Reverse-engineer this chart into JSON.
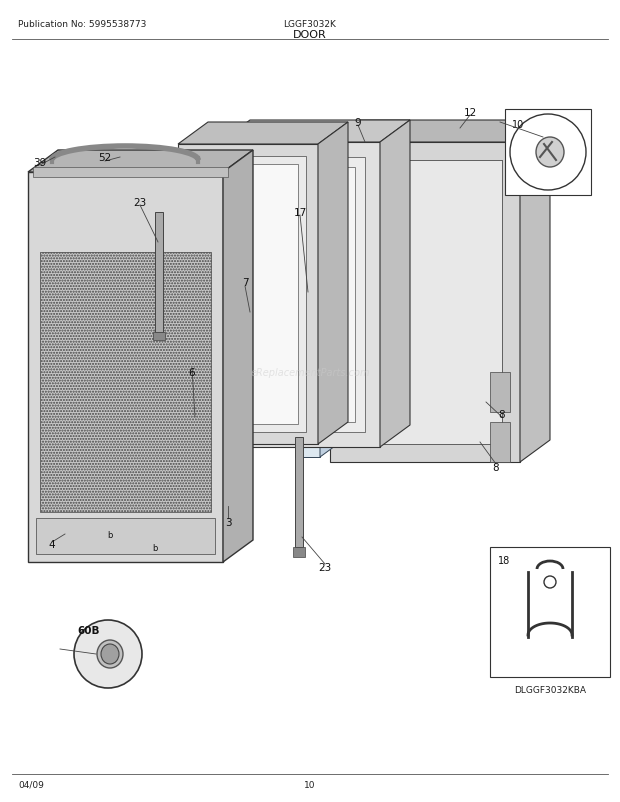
{
  "title": "DOOR",
  "pub_no": "Publication No: 5995538773",
  "model": "LGGF3032K",
  "date": "04/09",
  "page": "10",
  "bg_color": "#ffffff",
  "text_color": "#000000",
  "sub_model": "DLGGF3032KBA"
}
